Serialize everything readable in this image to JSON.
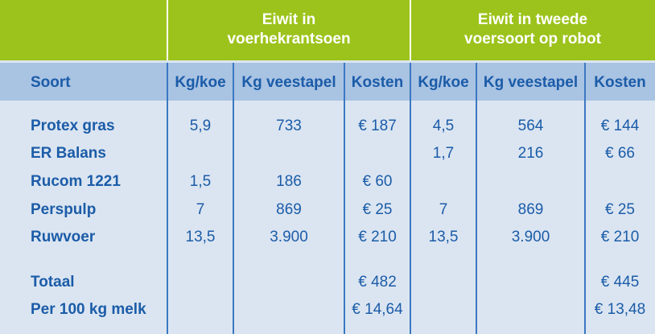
{
  "header": {
    "groups": [
      [
        "Eiwit in",
        "voerhekrantsoen"
      ],
      [
        "Eiwit in tweede",
        "voersoort op robot"
      ]
    ]
  },
  "table": {
    "columns": [
      "Soort",
      "Kg/koe",
      "Kg veestapel",
      "Kosten",
      "Kg/koe",
      "Kg veestapel",
      "Kosten"
    ],
    "rows": [
      [
        "Protex gras",
        "5,9",
        "733",
        "€ 187",
        "4,5",
        "564",
        "€ 144"
      ],
      [
        "ER Balans",
        null,
        null,
        null,
        "1,7",
        "216",
        "€ 66"
      ],
      [
        "Rucom 1221",
        "1,5",
        "186",
        "€ 60",
        null,
        null,
        null
      ],
      [
        "Perspulp",
        "7",
        "869",
        "€ 25",
        "7",
        "869",
        "€ 25"
      ],
      [
        "Ruwvoer",
        "13,5",
        "3.900",
        "€ 210",
        "13,5",
        "3.900",
        "€ 210"
      ],
      [
        "Totaal",
        null,
        null,
        "€ 482",
        null,
        null,
        "€ 445"
      ],
      [
        "Per 100 kg melk",
        null,
        null,
        "€ 14,64",
        null,
        null,
        "€ 13,48"
      ]
    ]
  }
}
